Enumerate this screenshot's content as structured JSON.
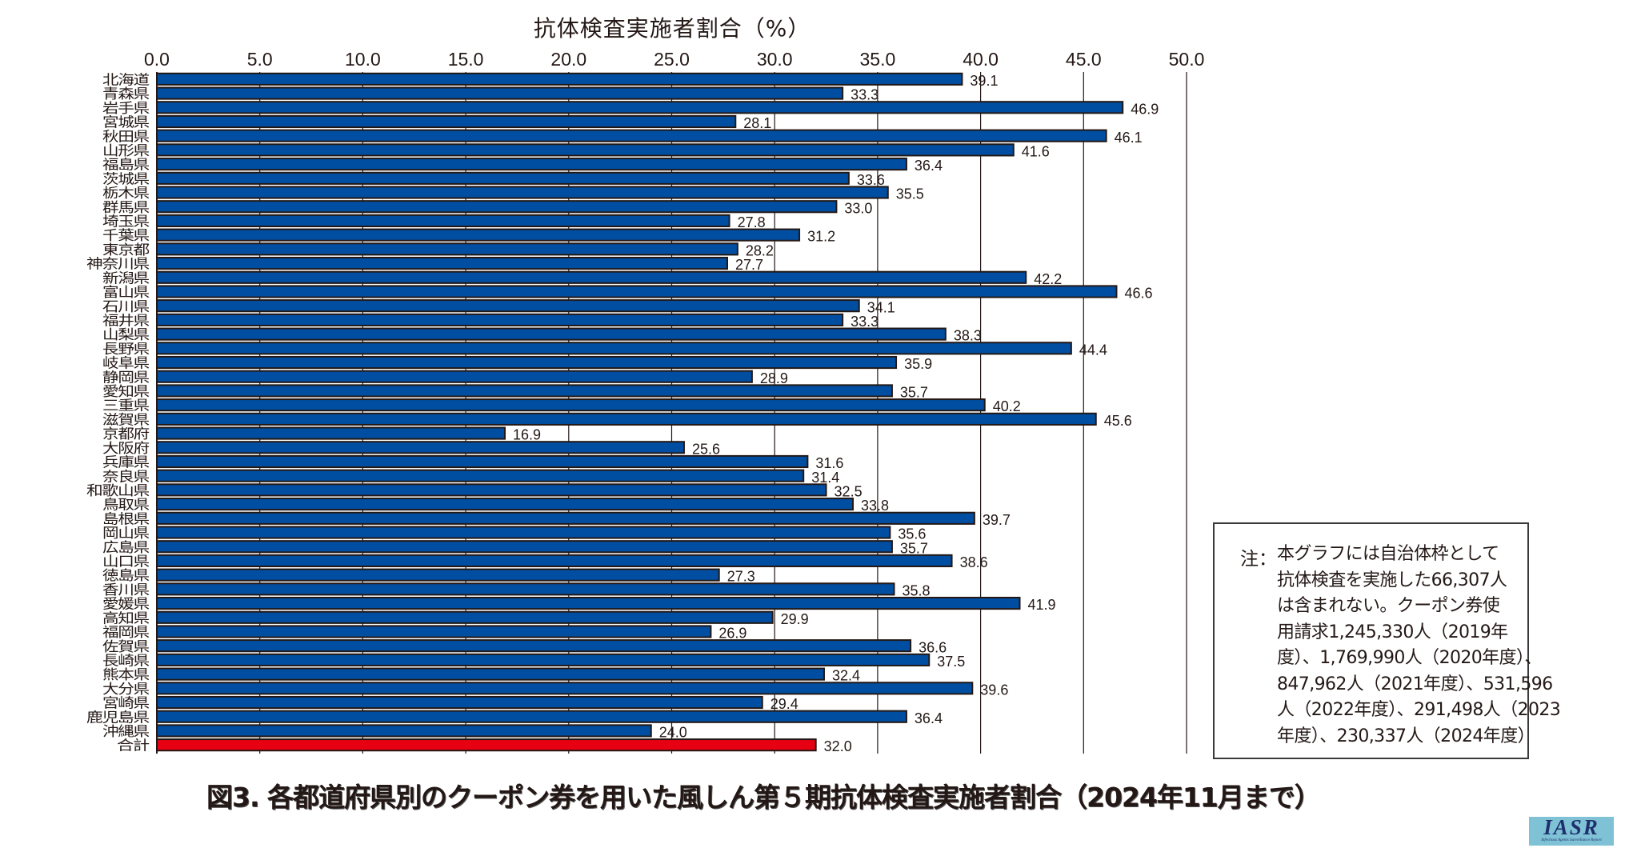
{
  "chart_data": {
    "type": "bar",
    "orientation": "horizontal",
    "title": "図3. 各都道府県別のクーポン券を用いた風しん第５期抗体検査実施者割合（2024年11月まで）",
    "xlabel": "抗体検査実施者割合（%）",
    "ylabel": "",
    "xlim": [
      0,
      50
    ],
    "x_ticks": [
      "0.0",
      "5.0",
      "10.0",
      "15.0",
      "20.0",
      "25.0",
      "30.0",
      "35.0",
      "40.0",
      "45.0",
      "50.0"
    ],
    "x_tick_values": [
      0,
      5,
      10,
      15,
      20,
      25,
      30,
      35,
      40,
      45,
      50
    ],
    "x_axis_position": "top",
    "grid": true,
    "categories": [
      "北海道",
      "青森県",
      "岩手県",
      "宮城県",
      "秋田県",
      "山形県",
      "福島県",
      "茨城県",
      "栃木県",
      "群馬県",
      "埼玉県",
      "千葉県",
      "東京都",
      "神奈川県",
      "新潟県",
      "富山県",
      "石川県",
      "福井県",
      "山梨県",
      "長野県",
      "岐阜県",
      "静岡県",
      "愛知県",
      "三重県",
      "滋賀県",
      "京都府",
      "大阪府",
      "兵庫県",
      "奈良県",
      "和歌山県",
      "鳥取県",
      "島根県",
      "岡山県",
      "広島県",
      "山口県",
      "徳島県",
      "香川県",
      "愛媛県",
      "高知県",
      "福岡県",
      "佐賀県",
      "長崎県",
      "熊本県",
      "大分県",
      "宮崎県",
      "鹿児島県",
      "沖縄県",
      "合計"
    ],
    "values": [
      39.1,
      33.3,
      46.9,
      28.1,
      46.1,
      41.6,
      36.4,
      33.6,
      35.5,
      33.0,
      27.8,
      31.2,
      28.2,
      27.7,
      42.2,
      46.6,
      34.1,
      33.3,
      38.3,
      44.4,
      35.9,
      28.9,
      35.7,
      40.2,
      45.6,
      16.9,
      25.6,
      31.6,
      31.4,
      32.5,
      33.8,
      39.7,
      35.6,
      35.7,
      38.6,
      27.3,
      35.8,
      41.9,
      29.9,
      26.9,
      36.6,
      37.5,
      32.4,
      39.6,
      29.4,
      36.4,
      24.0,
      32.0
    ],
    "value_labels": [
      "39.1",
      "33.3",
      "46.9",
      "28.1",
      "46.1",
      "41.6",
      "36.4",
      "33.6",
      "35.5",
      "33.0",
      "27.8",
      "31.2",
      "28.2",
      "27.7",
      "42.2",
      "46.6",
      "34.1",
      "33.3",
      "38.3",
      "44.4",
      "35.9",
      "28.9",
      "35.7",
      "40.2",
      "45.6",
      "16.9",
      "25.6",
      "31.6",
      "31.4",
      "32.5",
      "33.8",
      "39.7",
      "35.6",
      "35.7",
      "38.6",
      "27.3",
      "35.8",
      "41.9",
      "29.9",
      "26.9",
      "36.6",
      "37.5",
      "32.4",
      "39.6",
      "29.4",
      "36.4",
      "24.0",
      "32.0"
    ],
    "highlight_category": "合計",
    "colors": {
      "bar": "#004ea2",
      "highlight_bar": "#e60012",
      "bar_edge": "#231815",
      "grid": "#231815"
    }
  },
  "note": {
    "prefix": "注：",
    "lines": [
      "本グラフには自治体枠として",
      "抗体検査を実施した66,307人",
      "は含まれない。クーポン券使",
      "用請求1,245,330人（2019年",
      "度）、1,769,990人（2020年度）、",
      "847,962人（2021年度）、531,596",
      "人（2022年度）、291,498人（2023",
      "年度）、230,337人（2024年度）"
    ]
  },
  "logo": {
    "main": "IASR",
    "sub": "Infectious Agents Surveillance Report"
  }
}
